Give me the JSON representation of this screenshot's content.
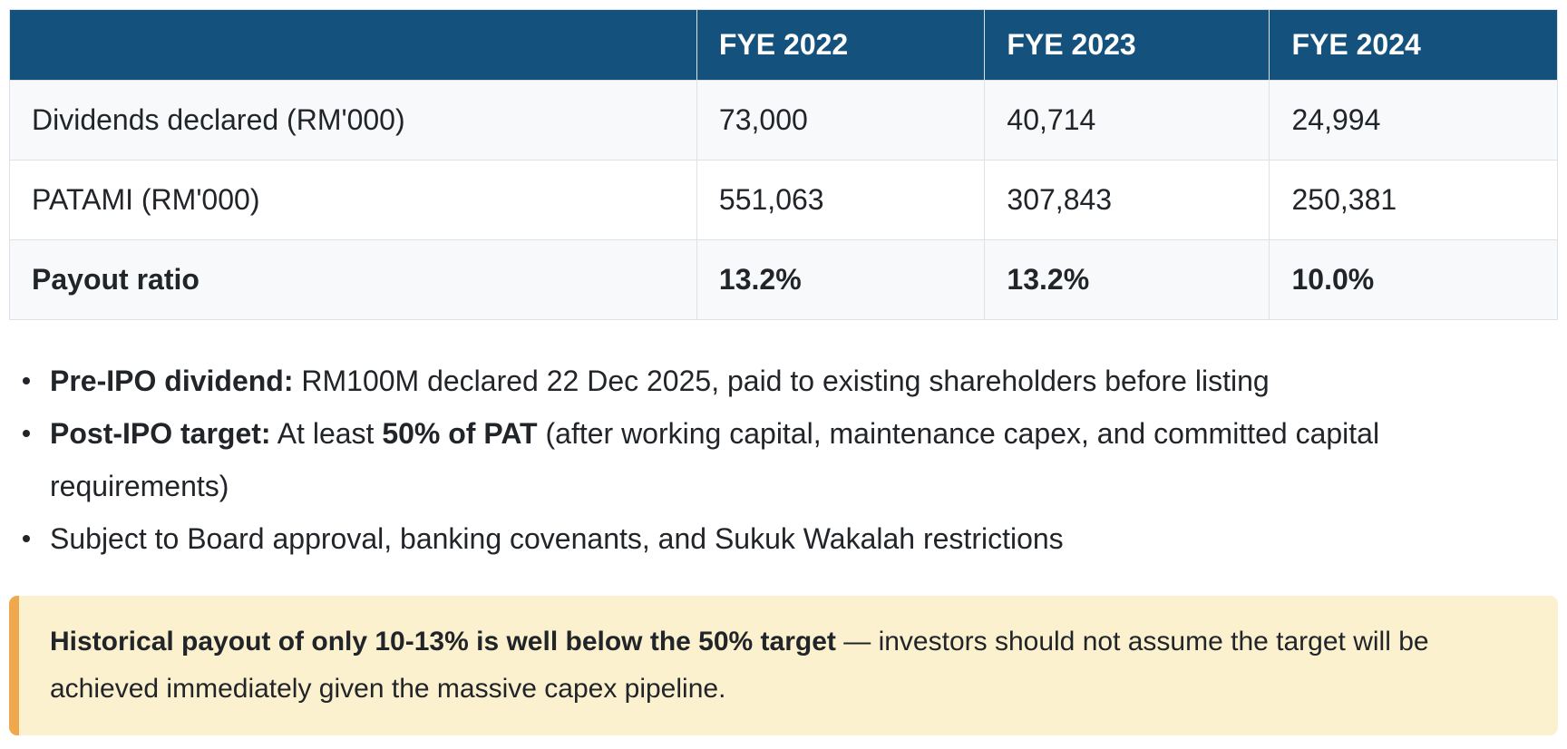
{
  "table": {
    "header": {
      "col0": "",
      "col1": "FYE 2022",
      "col2": "FYE 2023",
      "col3": "FYE 2024"
    },
    "rows": [
      {
        "label": "Dividends declared (RM'000)",
        "v1": "73,000",
        "v2": "40,714",
        "v3": "24,994"
      },
      {
        "label": "PATAMI (RM'000)",
        "v1": "551,063",
        "v2": "307,843",
        "v3": "250,381"
      },
      {
        "label": "Payout ratio",
        "v1": "13.2%",
        "v2": "13.2%",
        "v3": "10.0%"
      }
    ]
  },
  "bullets": {
    "item1": {
      "lead_bold": "Pre-IPO dividend:",
      "rest": " RM100M declared 22 Dec 2025, paid to existing shareholders before listing"
    },
    "item2": {
      "lead_bold": "Post-IPO target:",
      "mid": " At least ",
      "mid_bold": "50% of PAT",
      "rest": " (after working capital, maintenance capex, and committed capital requirements)"
    },
    "item3": {
      "text": "Subject to Board approval, banking covenants, and Sukuk Wakalah restrictions"
    }
  },
  "callout": {
    "lead_bold": "Historical payout of only 10-13% is well below the 50% target",
    "rest": " — investors should not assume the target will be achieved immediately given the massive capex pipeline."
  },
  "colors": {
    "header_bg": "#14527D",
    "header_text": "#FFFFFF",
    "row_stripe": "#F8F9FA",
    "table_border": "#DEE2E6",
    "body_text": "#212529",
    "callout_bg": "#FCF1CE",
    "callout_border": "#F0A84E"
  }
}
